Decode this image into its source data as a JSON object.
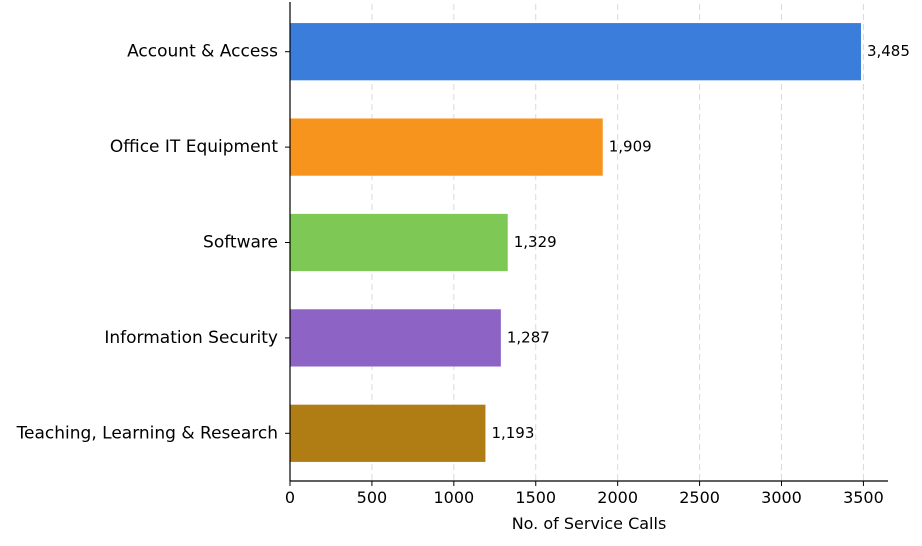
{
  "chart_data": {
    "type": "bar",
    "orientation": "horizontal",
    "title": "",
    "xlabel": "No. of Service Calls",
    "ylabel": "",
    "xlim": [
      0,
      3650
    ],
    "xticks": [
      0,
      500,
      1000,
      1500,
      2000,
      2500,
      3000,
      3500
    ],
    "grid": "vertical dashed",
    "categories": [
      "Account & Access",
      "Office IT Equipment",
      "Software",
      "Information Security",
      "Teaching, Learning & Research"
    ],
    "values": [
      3485,
      1909,
      1329,
      1287,
      1193
    ],
    "value_labels": [
      "3,485",
      "1,909",
      "1,329",
      "1,287",
      "1,193"
    ],
    "colors": [
      "#3a7dda",
      "#f7941e",
      "#7ec855",
      "#8d63c6",
      "#b07d14"
    ]
  }
}
